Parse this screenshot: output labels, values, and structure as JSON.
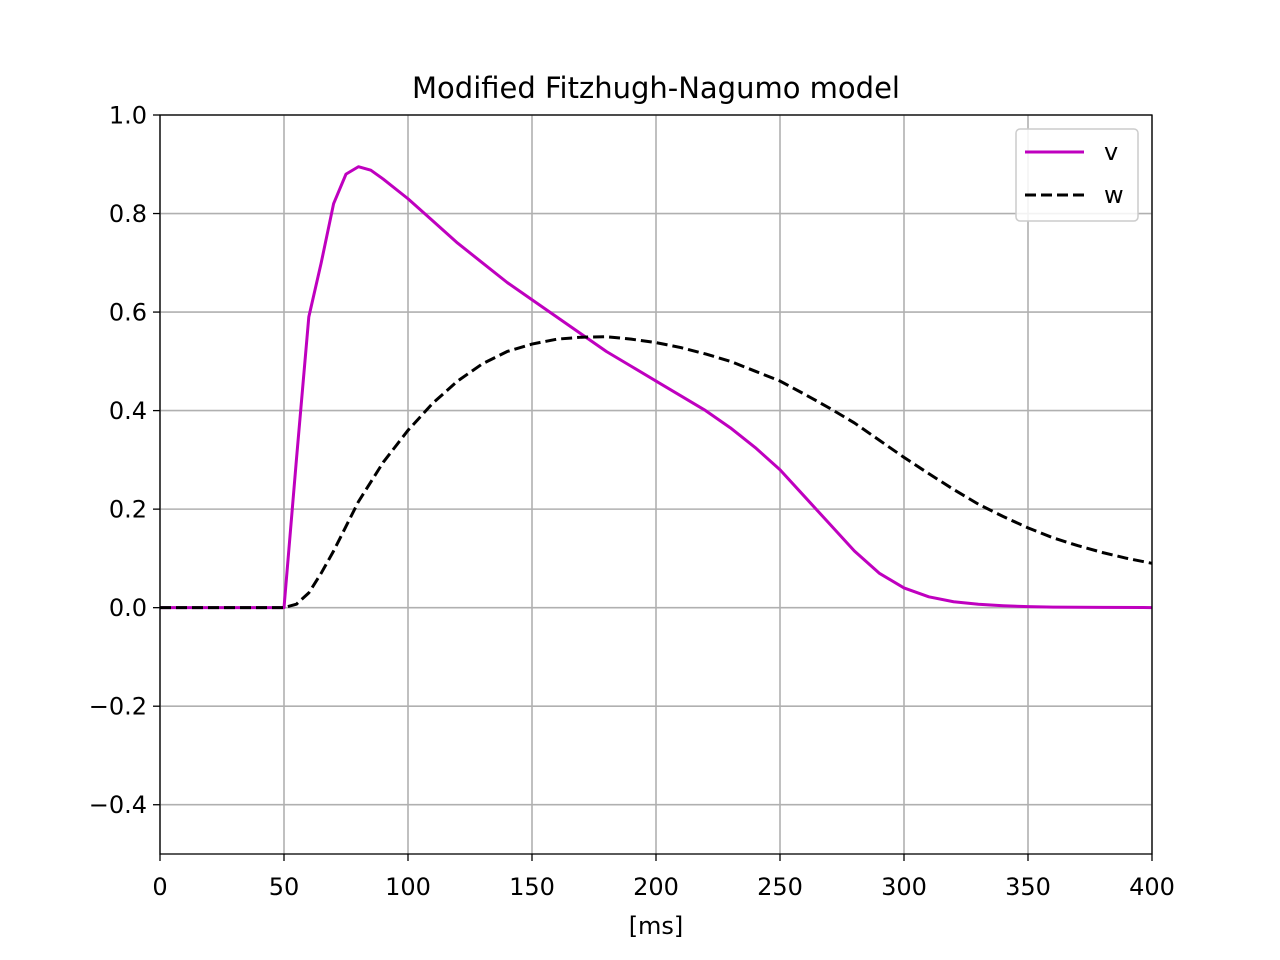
{
  "chart_data": {
    "type": "line",
    "title": "Modified Fitzhugh-Nagumo model",
    "xlabel": "[ms]",
    "ylabel": "",
    "xlim": [
      0,
      400
    ],
    "ylim": [
      -0.5,
      1.0
    ],
    "xticks": [
      0,
      50,
      100,
      150,
      200,
      250,
      300,
      350,
      400
    ],
    "yticks": [
      -0.4,
      -0.2,
      0.0,
      0.2,
      0.4,
      0.6,
      0.8,
      1.0
    ],
    "xtick_labels": [
      "0",
      "50",
      "100",
      "150",
      "200",
      "250",
      "300",
      "350",
      "400"
    ],
    "ytick_labels": [
      "−0.4",
      "−0.2",
      "0.0",
      "0.2",
      "0.4",
      "0.6",
      "0.8",
      "1.0"
    ],
    "grid": true,
    "legend_position": "top-right",
    "series": [
      {
        "name": "v",
        "color": "#bf00bf",
        "style": "solid",
        "x": [
          0,
          50,
          55,
          60,
          65,
          70,
          75,
          80,
          85,
          90,
          100,
          110,
          120,
          130,
          140,
          150,
          160,
          170,
          180,
          190,
          200,
          210,
          220,
          230,
          240,
          250,
          260,
          270,
          280,
          290,
          300,
          310,
          320,
          330,
          340,
          350,
          360,
          380,
          400
        ],
        "y": [
          0,
          0,
          0.3,
          0.59,
          0.7,
          0.82,
          0.88,
          0.895,
          0.888,
          0.87,
          0.83,
          0.785,
          0.74,
          0.7,
          0.66,
          0.625,
          0.59,
          0.555,
          0.52,
          0.49,
          0.46,
          0.43,
          0.4,
          0.365,
          0.325,
          0.28,
          0.225,
          0.17,
          0.115,
          0.07,
          0.04,
          0.022,
          0.012,
          0.007,
          0.004,
          0.002,
          0.001,
          0.0005,
          0.0002
        ]
      },
      {
        "name": "w",
        "color": "#000000",
        "style": "dashed",
        "x": [
          0,
          50,
          55,
          60,
          65,
          70,
          80,
          90,
          100,
          110,
          120,
          130,
          140,
          150,
          160,
          170,
          180,
          190,
          200,
          210,
          220,
          230,
          240,
          250,
          260,
          270,
          280,
          290,
          300,
          310,
          320,
          330,
          340,
          350,
          360,
          370,
          380,
          390,
          400
        ],
        "y": [
          0,
          0,
          0.007,
          0.03,
          0.07,
          0.115,
          0.215,
          0.295,
          0.36,
          0.415,
          0.46,
          0.495,
          0.52,
          0.535,
          0.545,
          0.549,
          0.55,
          0.545,
          0.538,
          0.528,
          0.515,
          0.5,
          0.48,
          0.46,
          0.433,
          0.405,
          0.375,
          0.34,
          0.305,
          0.272,
          0.24,
          0.21,
          0.185,
          0.162,
          0.142,
          0.126,
          0.112,
          0.1,
          0.09
        ]
      }
    ]
  }
}
